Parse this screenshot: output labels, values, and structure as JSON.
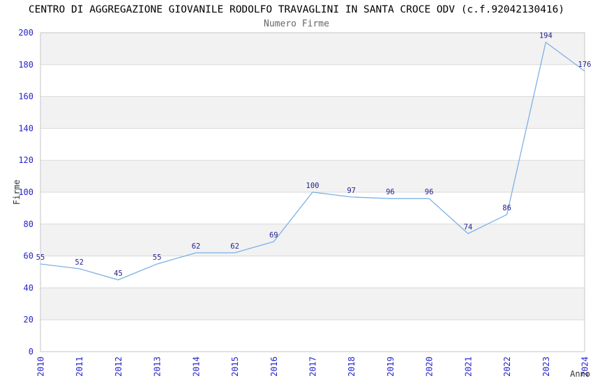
{
  "header": {
    "title": "CENTRO DI AGGREGAZIONE GIOVANILE RODOLFO TRAVAGLINI IN SANTA CROCE ODV (c.f.92042130416)",
    "subtitle": "Numero Firme"
  },
  "chart_data": {
    "type": "line",
    "title": "Numero Firme",
    "categories": [
      2010,
      2011,
      2012,
      2013,
      2014,
      2015,
      2016,
      2017,
      2018,
      2019,
      2020,
      2021,
      2022,
      2023,
      2024
    ],
    "values": [
      55,
      52,
      45,
      55,
      62,
      62,
      69,
      100,
      97,
      96,
      96,
      74,
      86,
      194,
      176
    ],
    "xlabel": "Anno",
    "ylabel": "Firme",
    "ylim": [
      0,
      200
    ],
    "ytick_step": 20,
    "yticks": [
      0,
      20,
      40,
      60,
      80,
      100,
      120,
      140,
      160,
      180,
      200
    ],
    "grid": "horizontal-bands-alternating",
    "legend_position": "none",
    "data_labels_visible": true,
    "colors": {
      "line": "#7cb1e6",
      "tick_label": "#2424cc",
      "data_label": "#22228f",
      "band_fill": "#f2f2f2",
      "gridline": "#d9d9d9",
      "plot_border": "#c6c6c6",
      "title": "#000000",
      "subtitle": "#666666",
      "axis_label": "#333333",
      "background": "#ffffff"
    }
  }
}
